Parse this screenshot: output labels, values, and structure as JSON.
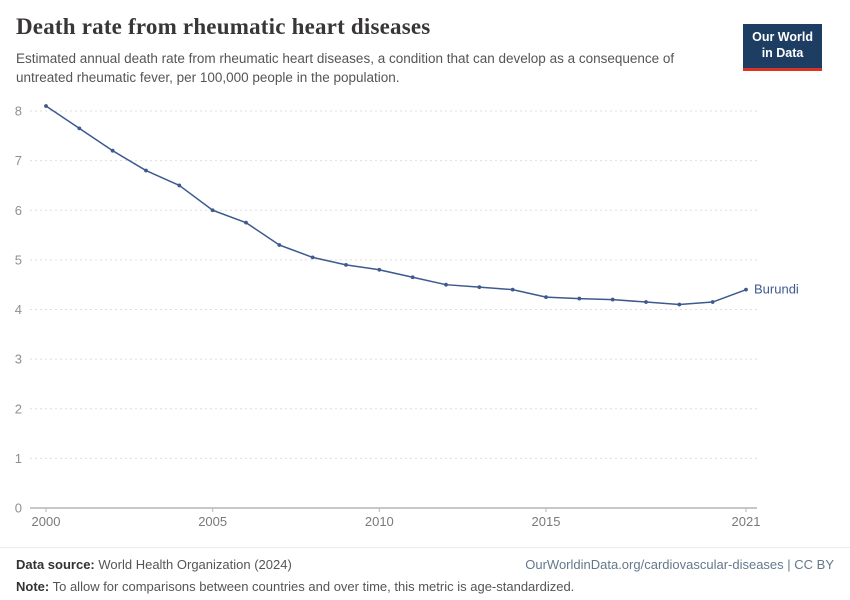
{
  "header": {
    "title": "Death rate from rheumatic heart diseases",
    "subtitle": "Estimated annual death rate from rheumatic heart diseases, a condition that can develop as a consequence of untreated rheumatic fever, per 100,000 people in the population.",
    "logo": {
      "line1": "Our World",
      "line2": "in Data"
    }
  },
  "chart_data": {
    "type": "line",
    "title": "Death rate from rheumatic heart diseases",
    "unit": "deaths per 100,000 people",
    "x": [
      2000,
      2001,
      2002,
      2003,
      2004,
      2005,
      2006,
      2007,
      2008,
      2009,
      2010,
      2011,
      2012,
      2013,
      2014,
      2015,
      2016,
      2017,
      2018,
      2019,
      2020,
      2021
    ],
    "series": [
      {
        "name": "Burundi",
        "color": "#3d5a8f",
        "values": [
          8.1,
          7.65,
          7.2,
          6.8,
          6.5,
          6.0,
          5.75,
          5.3,
          5.05,
          4.9,
          4.8,
          4.65,
          4.5,
          4.45,
          4.4,
          4.25,
          4.22,
          4.2,
          4.15,
          4.1,
          4.15,
          4.4
        ]
      }
    ],
    "xticks": [
      2000,
      2005,
      2010,
      2015,
      2021
    ],
    "yticks": [
      0,
      1,
      2,
      3,
      4,
      5,
      6,
      7,
      8
    ],
    "ylim": [
      0,
      8.3
    ],
    "xlabel": "",
    "ylabel": "",
    "grid": "horizontal-dashed",
    "legend": "end-of-line-label"
  },
  "footer": {
    "source_label": "Data source:",
    "source": "World Health Organization (2024)",
    "link": "OurWorldinData.org/cardiovascular-diseases | CC BY",
    "note_label": "Note:",
    "note": "To allow for comparisons between countries and over time, this metric is age-standardized."
  }
}
